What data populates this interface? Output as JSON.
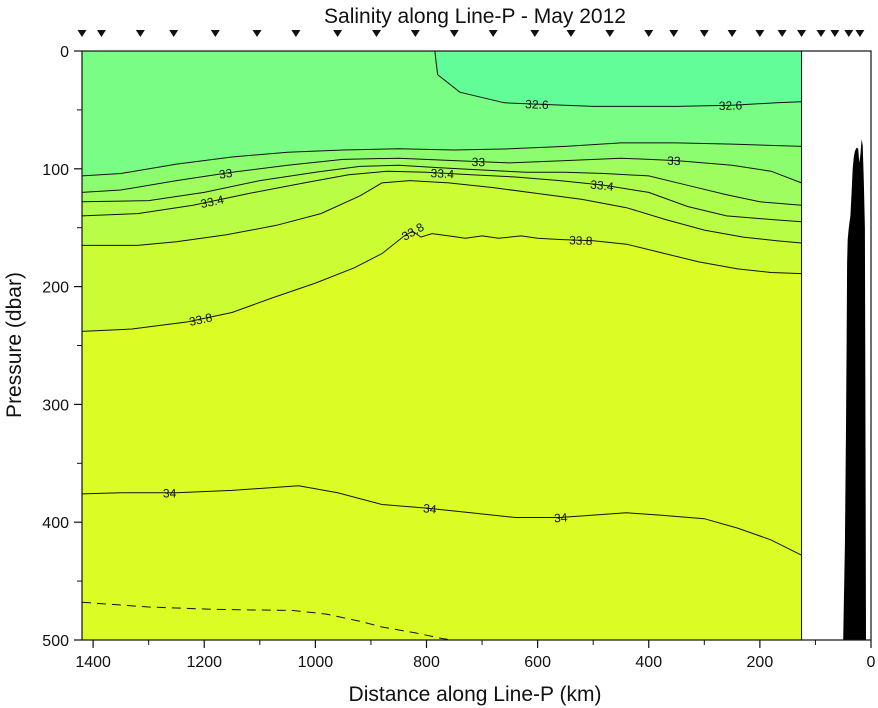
{
  "chart_data": {
    "type": "heatmap",
    "title": "Salinity along Line-P - May 2012",
    "xlabel": "Distance along Line-P (km)",
    "ylabel": "Pressure (dbar)",
    "xlim": [
      1420,
      0
    ],
    "ylim": [
      500,
      0
    ],
    "x_reversed": true,
    "y_reversed": true,
    "x_ticks": [
      1400,
      1200,
      1000,
      800,
      600,
      400,
      200,
      0
    ],
    "y_ticks": [
      0,
      100,
      200,
      300,
      400,
      500
    ],
    "data_extent_x": [
      1420,
      125
    ],
    "colors": {
      "lt_32_6": "#62fd99",
      "32_6_to_33": "#79fd85",
      "33_to_33_2": "#8cfd6f",
      "33_2_to_33_4": "#a0fd5f",
      "33_4_to_33_6": "#aefd4f",
      "33_6_to_33_8": "#bafd46",
      "33_8_to_34": "#ccfc34",
      "gt_34": "#dcfc26",
      "bathymetry": "#000000"
    },
    "stations_km": [
      1420,
      1385,
      1315,
      1255,
      1180,
      1105,
      1035,
      960,
      890,
      820,
      750,
      680,
      605,
      540,
      470,
      400,
      355,
      300,
      250,
      200,
      160,
      125,
      90,
      65,
      40,
      20
    ],
    "contours": [
      {
        "level": 32.6,
        "labels": [
          "32.6",
          "32.6"
        ],
        "points": [
          [
            785,
            0
          ],
          [
            780,
            20
          ],
          [
            740,
            35
          ],
          [
            660,
            44
          ],
          [
            500,
            47
          ],
          [
            350,
            47
          ],
          [
            250,
            46
          ],
          [
            170,
            44
          ],
          [
            125,
            43
          ]
        ]
      },
      {
        "level": 32.8,
        "labels": [],
        "points": [
          [
            1420,
            106
          ],
          [
            1350,
            104
          ],
          [
            1250,
            96
          ],
          [
            1150,
            90
          ],
          [
            1050,
            86
          ],
          [
            950,
            84
          ],
          [
            850,
            83
          ],
          [
            750,
            84
          ],
          [
            650,
            83
          ],
          [
            550,
            81
          ],
          [
            450,
            78
          ],
          [
            350,
            78
          ],
          [
            250,
            79
          ],
          [
            125,
            81
          ]
        ]
      },
      {
        "level": 33.0,
        "labels": [
          "33",
          "33",
          "33"
        ],
        "points": [
          [
            1420,
            120
          ],
          [
            1350,
            118
          ],
          [
            1250,
            110
          ],
          [
            1150,
            103
          ],
          [
            1050,
            97
          ],
          [
            950,
            92
          ],
          [
            850,
            91
          ],
          [
            750,
            93
          ],
          [
            650,
            95
          ],
          [
            550,
            93
          ],
          [
            450,
            91
          ],
          [
            350,
            93
          ],
          [
            250,
            97
          ],
          [
            180,
            102
          ],
          [
            125,
            112
          ]
        ]
      },
      {
        "level": 33.2,
        "labels": [],
        "points": [
          [
            1420,
            128
          ],
          [
            1300,
            127
          ],
          [
            1200,
            120
          ],
          [
            1100,
            110
          ],
          [
            1000,
            103
          ],
          [
            920,
            98
          ],
          [
            850,
            97
          ],
          [
            780,
            99
          ],
          [
            700,
            101
          ],
          [
            620,
            103
          ],
          [
            550,
            103
          ],
          [
            480,
            104
          ],
          [
            400,
            106
          ],
          [
            330,
            114
          ],
          [
            260,
            122
          ],
          [
            200,
            128
          ],
          [
            125,
            131
          ]
        ]
      },
      {
        "level": 33.4,
        "labels": [
          "33.4",
          "33.4",
          "33.4"
        ],
        "points": [
          [
            1420,
            140
          ],
          [
            1320,
            138
          ],
          [
            1220,
            131
          ],
          [
            1120,
            121
          ],
          [
            1020,
            112
          ],
          [
            940,
            105
          ],
          [
            870,
            102
          ],
          [
            800,
            103
          ],
          [
            720,
            105
          ],
          [
            640,
            107
          ],
          [
            560,
            110
          ],
          [
            480,
            114
          ],
          [
            400,
            120
          ],
          [
            330,
            132
          ],
          [
            260,
            140
          ],
          [
            180,
            143
          ],
          [
            125,
            145
          ]
        ]
      },
      {
        "level": 33.6,
        "labels": [],
        "points": [
          [
            1420,
            165
          ],
          [
            1320,
            165
          ],
          [
            1250,
            162
          ],
          [
            1160,
            156
          ],
          [
            1070,
            148
          ],
          [
            990,
            138
          ],
          [
            920,
            123
          ],
          [
            880,
            112
          ],
          [
            830,
            110
          ],
          [
            760,
            112
          ],
          [
            680,
            116
          ],
          [
            600,
            121
          ],
          [
            520,
            126
          ],
          [
            440,
            133
          ],
          [
            370,
            143
          ],
          [
            300,
            152
          ],
          [
            230,
            158
          ],
          [
            170,
            161
          ],
          [
            125,
            163
          ]
        ]
      },
      {
        "level": 33.8,
        "labels": [
          "33.8",
          "33.8",
          "33.8"
        ],
        "points": [
          [
            1420,
            238
          ],
          [
            1330,
            236
          ],
          [
            1230,
            230
          ],
          [
            1150,
            222
          ],
          [
            1080,
            210
          ],
          [
            1000,
            197
          ],
          [
            930,
            184
          ],
          [
            880,
            172
          ],
          [
            840,
            157
          ],
          [
            825,
            153
          ],
          [
            810,
            158
          ],
          [
            790,
            155
          ],
          [
            760,
            157
          ],
          [
            730,
            159
          ],
          [
            700,
            157
          ],
          [
            670,
            159
          ],
          [
            630,
            157
          ],
          [
            600,
            159
          ],
          [
            560,
            160
          ],
          [
            500,
            161
          ],
          [
            440,
            164
          ],
          [
            380,
            171
          ],
          [
            310,
            179
          ],
          [
            240,
            185
          ],
          [
            180,
            188
          ],
          [
            125,
            189
          ]
        ]
      },
      {
        "level": 34.0,
        "labels": [
          "34",
          "34",
          "34"
        ],
        "points": [
          [
            1420,
            376
          ],
          [
            1350,
            375
          ],
          [
            1250,
            375
          ],
          [
            1150,
            373
          ],
          [
            1030,
            369
          ],
          [
            960,
            375
          ],
          [
            880,
            385
          ],
          [
            800,
            388
          ],
          [
            720,
            392
          ],
          [
            640,
            396
          ],
          [
            560,
            396
          ],
          [
            500,
            394
          ],
          [
            440,
            392
          ],
          [
            380,
            394
          ],
          [
            300,
            397
          ],
          [
            240,
            405
          ],
          [
            180,
            415
          ],
          [
            125,
            428
          ]
        ]
      },
      {
        "level": 34.1,
        "dashed": true,
        "labels": [],
        "points": [
          [
            1420,
            468
          ],
          [
            1300,
            472
          ],
          [
            1180,
            474
          ],
          [
            1040,
            475
          ],
          [
            980,
            478
          ],
          [
            920,
            484
          ],
          [
            880,
            489
          ],
          [
            820,
            494
          ],
          [
            770,
            499
          ],
          [
            750,
            500
          ]
        ]
      }
    ]
  }
}
